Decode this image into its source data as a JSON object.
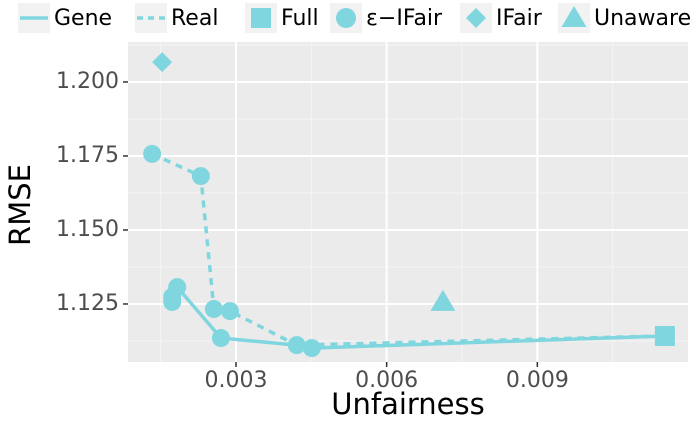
{
  "chart_data": {
    "type": "line",
    "x_label": "Unfairness",
    "y_label": "RMSE",
    "xlim": [
      0.00085,
      0.012
    ],
    "ylim": [
      1.1054,
      1.2135
    ],
    "xticks": [
      0.003,
      0.006,
      0.009
    ],
    "yticks": [
      {
        "value": 1.2,
        "label": "1.200"
      },
      1.175,
      {
        "value": 1.15,
        "label": "1.150"
      },
      1.125
    ],
    "grid": true,
    "legend": "top",
    "series": [
      {
        "name": "Gene",
        "type": "line",
        "dash": "solid",
        "color": "#7fd6df",
        "x": [
          0.00173,
          0.00173,
          0.00183,
          0.0027,
          0.00421,
          0.00451,
          0.01154
        ],
        "y": [
          1.1257,
          1.1274,
          1.1307,
          1.1135,
          1.1111,
          1.1101,
          1.1142
        ]
      },
      {
        "name": "Real",
        "type": "line",
        "dash": "dashed",
        "color": "#7fd6df",
        "x": [
          0.00133,
          0.0023,
          0.00256,
          0.00288,
          0.00421,
          0.01154
        ],
        "y": [
          1.1757,
          1.1682,
          1.1233,
          1.1226,
          1.1111,
          1.1142
        ]
      },
      {
        "name": "Full",
        "type": "scatter",
        "marker": "square",
        "color": "#7fd6df",
        "x": [
          0.01154
        ],
        "y": [
          1.1142
        ]
      },
      {
        "name": "ε−IFair",
        "type": "scatter",
        "marker": "circle",
        "color": "#7fd6df",
        "x": [
          0.00173,
          0.00173,
          0.00183,
          0.0027,
          0.00421,
          0.00451,
          0.00133,
          0.0023,
          0.00256,
          0.00288
        ],
        "y": [
          1.1257,
          1.1274,
          1.1307,
          1.1135,
          1.1111,
          1.1101,
          1.1757,
          1.1682,
          1.1233,
          1.1226
        ]
      },
      {
        "name": "IFair",
        "type": "scatter",
        "marker": "diamond",
        "color": "#7fd6df",
        "x": [
          0.00153
        ],
        "y": [
          1.2067
        ]
      },
      {
        "name": "Unaware",
        "type": "scatter",
        "marker": "triangle",
        "color": "#7fd6df",
        "x": [
          0.00712
        ],
        "y": [
          1.1257
        ]
      }
    ]
  }
}
